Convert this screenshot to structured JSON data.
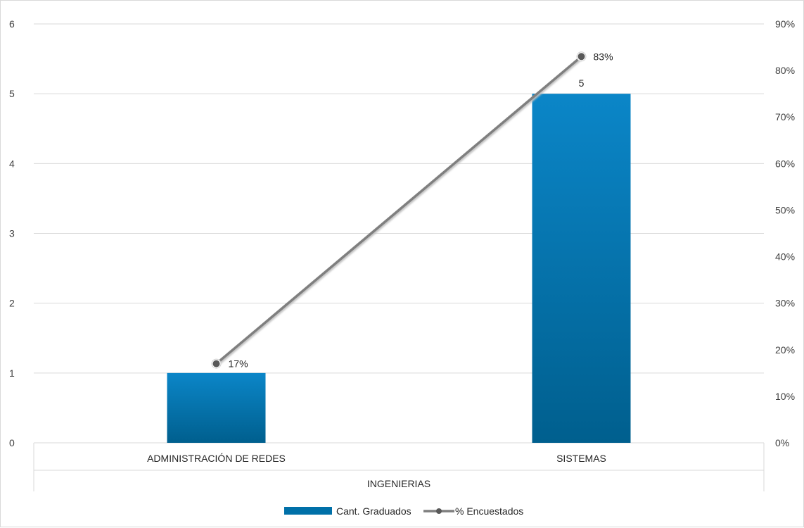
{
  "chart_data": {
    "type": "bar",
    "categories": [
      "ADMINISTRACIÓN DE REDES",
      "SISTEMAS"
    ],
    "series": [
      {
        "name": "Cant. Graduados",
        "type": "bar",
        "axis": "left",
        "values": [
          1,
          5
        ],
        "color": "#0070a8",
        "data_labels": [
          "1",
          "5"
        ]
      },
      {
        "name": "% Encuestados",
        "type": "line",
        "axis": "right",
        "values": [
          17,
          83
        ],
        "color": "#7f7f7f",
        "marker_color": "#595959",
        "data_labels": [
          "17%",
          "83%"
        ]
      }
    ],
    "xlabel": "INGENIERIAS",
    "ylabel": "",
    "y2label": "",
    "ylim": [
      0,
      6
    ],
    "y2lim": [
      0,
      90
    ],
    "yticks": [
      "0",
      "1",
      "2",
      "3",
      "4",
      "5",
      "6"
    ],
    "y2ticks": [
      "0%",
      "10%",
      "20%",
      "30%",
      "40%",
      "50%",
      "60%",
      "70%",
      "80%",
      "90%"
    ],
    "grid": true,
    "legend_position": "bottom"
  }
}
